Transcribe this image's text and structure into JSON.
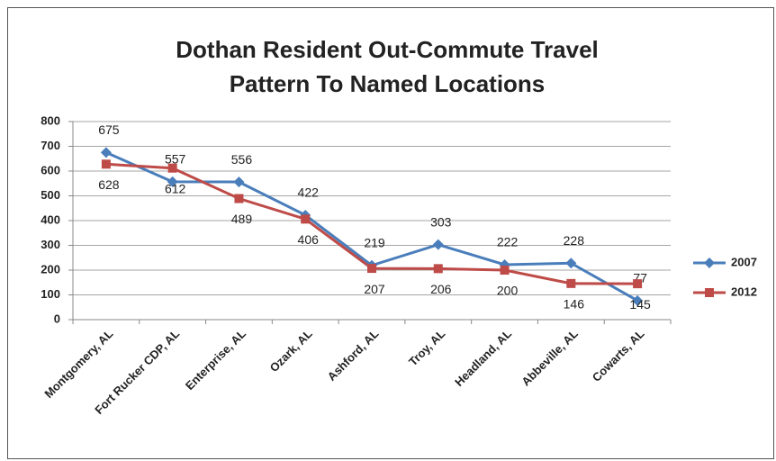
{
  "chart_data": {
    "type": "line",
    "title": "Dothan Resident Out-Commute Travel Pattern To Named Locations",
    "categories": [
      "Montgomery, AL",
      "Fort Rucker CDP, AL",
      "Enterprise, AL",
      "Ozark, AL",
      "Ashford, AL",
      "Troy, AL",
      "Headland, AL",
      "Abbeville, AL",
      "Cowarts, AL"
    ],
    "series": [
      {
        "name": "2007",
        "color": "#4a7ebb",
        "marker": "diamond",
        "values": [
          675,
          557,
          556,
          422,
          219,
          303,
          222,
          228,
          77
        ]
      },
      {
        "name": "2012",
        "color": "#be4b48",
        "marker": "square",
        "values": [
          628,
          612,
          489,
          406,
          207,
          206,
          200,
          146,
          145
        ]
      }
    ],
    "ylim": [
      0,
      800
    ],
    "yticks": [
      0,
      100,
      200,
      300,
      400,
      500,
      600,
      700,
      800
    ],
    "grid": true,
    "legend": "right"
  }
}
